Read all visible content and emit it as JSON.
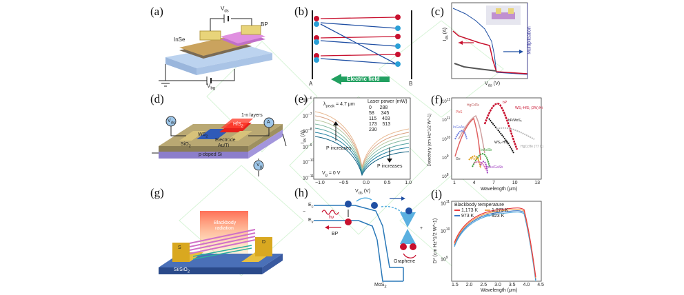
{
  "colors": {
    "red": "#c8102e",
    "blue": "#1f4fa3",
    "green": "#21a060",
    "gold": "#d9b46a",
    "purple": "#8a3fb3",
    "teal": "#1a8a8a"
  },
  "panels": [
    {
      "id": "a",
      "label": "(a)"
    },
    {
      "id": "b",
      "label": "(b)"
    },
    {
      "id": "c",
      "label": "(c)"
    },
    {
      "id": "d",
      "label": "(d)"
    },
    {
      "id": "e",
      "label": "(e)"
    },
    {
      "id": "f",
      "label": "(f)"
    },
    {
      "id": "g",
      "label": "(g)"
    },
    {
      "id": "h",
      "label": "(h)"
    },
    {
      "id": "i",
      "label": "(i)"
    }
  ],
  "panel_a": {
    "vds": "V",
    "vds_sub": "ds",
    "vbg": "V",
    "vbg_sub": "bg",
    "inse": "InSe",
    "bp": "BP"
  },
  "panel_b": {
    "left": "A",
    "right": "B",
    "field": "Electric field"
  },
  "panel_c": {
    "xlabel": "V",
    "xlabel_sub": "ds",
    "xlabel_unit": " (V)",
    "ylabel": "I",
    "ylabel_sub": "ds",
    "ylabel_unit": " (A)",
    "ylabel2": "Multiplication"
  },
  "panel_d": {
    "vds": "V",
    "vds_sub": "ds",
    "ammeter": "A",
    "layers": "1-n layers",
    "hfs": "HfS",
    "hfs_sub": "2",
    "ws": "WS",
    "ws_sub": "2",
    "electrode": "Electrode",
    "electrode2": "Au/Ti",
    "sio2": "SiO",
    "sio2_sub": "2",
    "substrate": "p-doped Si",
    "vg": "V",
    "vg_sub": "g"
  },
  "panel_e": {
    "xlabel": "V",
    "xlabel_sub": "ds",
    "xlabel_unit": " (V)",
    "ylabel": "I",
    "ylabel_sub": "ds",
    "ylabel_unit": " (A)",
    "lambda": "λ",
    "lambda_sub": "peak",
    "lambda_value": " = 4.7 μm",
    "legend_title": "Laser power (mW)",
    "legend_values": [
      "0",
      "288",
      "58",
      "345",
      "115",
      "403",
      "173",
      "513",
      "230"
    ],
    "p_left": "P increases",
    "p_right": "P increases",
    "vg_note": "V",
    "vg_note_sub": "g",
    "vg_note_value": " = 0 V",
    "xticks": [
      "−1.0",
      "−0.5",
      "0.0",
      "0.5",
      "1.0"
    ],
    "yticks": [
      "10",
      "10",
      "10",
      "10",
      "10",
      "10"
    ],
    "yexp": [
      "−6",
      "−7",
      "−8",
      "−9",
      "−10",
      "−11"
    ]
  },
  "panel_f": {
    "xlabel": "Wavelength (μm)",
    "ylabel": "Detectivity (cm Hz^1/2 W^-1)",
    "xticks": [
      "1",
      "4",
      "7",
      "10",
      "13"
    ],
    "yticks": [
      "10",
      "10",
      "10",
      "10",
      "10"
    ],
    "yexp": [
      "12",
      "11",
      "10",
      "9",
      "8"
    ],
    "labels": [
      "HgCdTe",
      "PbS",
      "InGaAs",
      "InAsSb",
      "PbSe",
      "InAs/GaSb",
      "Ge",
      "WS₂-HfS₂",
      "bP",
      "bP/MoS₂",
      "WS₂-HfS₂ (3%) Ki",
      "HgCdTe (77 K)"
    ]
  },
  "panel_g": {
    "source": "Blackbody",
    "source2": "radiation",
    "s": "S",
    "d": "D",
    "substrate": "Si/SiO",
    "substrate_sub": "2"
  },
  "panel_h": {
    "ec": "E",
    "ec_sub": "c",
    "ev": "E",
    "ev_sub": "v",
    "hv": "hν",
    "bp": "BP",
    "graphene": "Graphene",
    "mos2": "MoS",
    "mos2_sub": "2",
    "minus": "−",
    "plus": "+"
  },
  "panel_i": {
    "title": "Blackbody temperature",
    "legend": [
      {
        "label": "1,173 K",
        "color": "#e8393e"
      },
      {
        "label": "1,073 K",
        "color": "#f0a050"
      },
      {
        "label": "973 K",
        "color": "#3a78c8"
      },
      {
        "label": "923 K",
        "color": "#5bb0e0"
      }
    ],
    "xlabel": "Wavelength (μm)",
    "ylabel": "D* (cm Hz^1/2 W^-1)",
    "xticks": [
      "1.5",
      "2.0",
      "2.5",
      "3.0",
      "3.5",
      "4.0",
      "4.5"
    ],
    "yticks": [
      "10",
      "10",
      "10"
    ],
    "yexp": [
      "11",
      "10",
      "9"
    ]
  }
}
